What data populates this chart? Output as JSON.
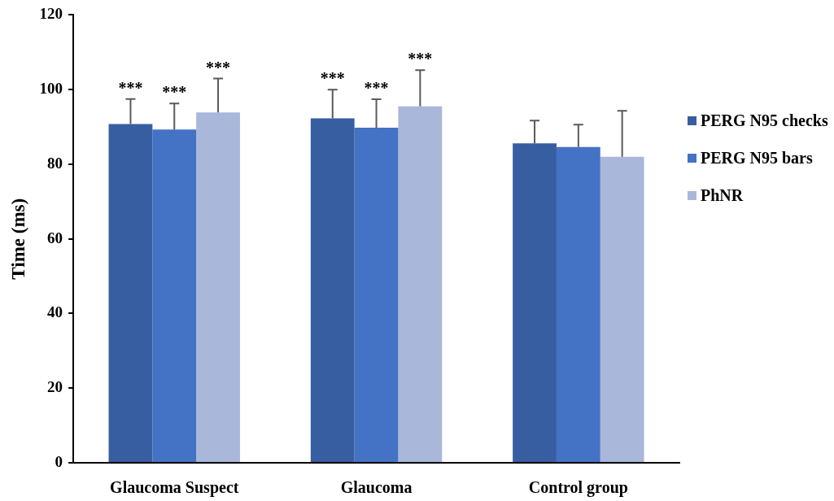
{
  "chart_data": {
    "type": "bar",
    "categories": [
      "Glaucoma Suspect",
      "Glaucoma",
      "Control group"
    ],
    "ylabel": "Time (ms)",
    "ylim": [
      0,
      120
    ],
    "yticks": [
      0,
      20,
      40,
      60,
      80,
      100,
      120
    ],
    "legend": "right",
    "series": [
      {
        "name": "PERG N95 checks",
        "color": "#375ea1",
        "values": [
          90.8,
          92.3,
          85.6
        ],
        "errors": [
          [
            90.8,
            97.5
          ],
          [
            92.3,
            100.0
          ],
          [
            85.6,
            91.7
          ]
        ]
      },
      {
        "name": "PERG N95 bars",
        "color": "#4472c4",
        "values": [
          89.3,
          89.8,
          84.6
        ],
        "errors": [
          [
            89.3,
            96.3
          ],
          [
            89.8,
            97.4
          ],
          [
            84.6,
            90.6
          ]
        ]
      },
      {
        "name": "PhNR",
        "color": "#a9b7db",
        "values": [
          93.9,
          95.5,
          82.0
        ],
        "errors": [
          [
            93.9,
            103.0
          ],
          [
            95.5,
            105.2
          ],
          [
            82.0,
            94.3
          ]
        ]
      }
    ],
    "annotations": [
      "***",
      "***",
      "***",
      "***",
      "***",
      "***"
    ]
  }
}
